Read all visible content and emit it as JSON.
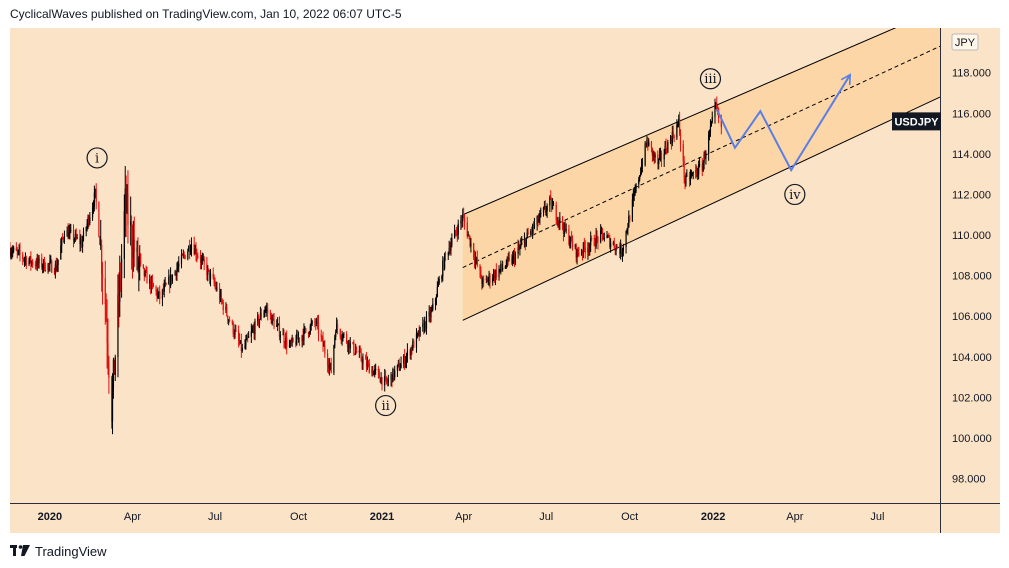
{
  "header": {
    "text": "CyclicalWaves published on TradingView.com, Jan 10, 2022 06:07 UTC-5"
  },
  "footer": {
    "brand": "TradingView",
    "logo_icon": "tradingview-logo-icon"
  },
  "chart_data": {
    "type": "candlestick",
    "symbol_label": "USDJPY",
    "currency_label": "JPY",
    "y_ticks": [
      98,
      100,
      102,
      104,
      106,
      108,
      110,
      112,
      114,
      116,
      118
    ],
    "y_tick_labels": [
      "98.000",
      "100.000",
      "102.000",
      "104.000",
      "106.000",
      "108.000",
      "110.000",
      "112.000",
      "114.000",
      "116.000",
      "118.000"
    ],
    "ylim": [
      96.8,
      120.2
    ],
    "x_ticks": [
      {
        "date": "2020-01-01",
        "label": "2020",
        "bold": true
      },
      {
        "date": "2020-04-01",
        "label": "Apr",
        "bold": false
      },
      {
        "date": "2020-07-01",
        "label": "Jul",
        "bold": false
      },
      {
        "date": "2020-10-01",
        "label": "Oct",
        "bold": false
      },
      {
        "date": "2021-01-01",
        "label": "2021",
        "bold": true
      },
      {
        "date": "2021-04-01",
        "label": "Apr",
        "bold": false
      },
      {
        "date": "2021-07-01",
        "label": "Jul",
        "bold": false
      },
      {
        "date": "2021-10-01",
        "label": "Oct",
        "bold": false
      },
      {
        "date": "2022-01-01",
        "label": "2022",
        "bold": true
      },
      {
        "date": "2022-04-01",
        "label": "Apr",
        "bold": false
      },
      {
        "date": "2022-07-01",
        "label": "Jul",
        "bold": false
      }
    ],
    "xlim": [
      "2019-11-18",
      "2022-09-08"
    ],
    "price_path": [
      {
        "date": "2019-11-18",
        "value": 109.3
      },
      {
        "date": "2019-12-10",
        "value": 108.7
      },
      {
        "date": "2020-01-08",
        "value": 108.4
      },
      {
        "date": "2020-01-17",
        "value": 110.2
      },
      {
        "date": "2020-02-05",
        "value": 109.6
      },
      {
        "date": "2020-02-20",
        "value": 112.0
      },
      {
        "date": "2020-03-01",
        "value": 107.5
      },
      {
        "date": "2020-03-09",
        "value": 101.5
      },
      {
        "date": "2020-03-24",
        "value": 111.5
      },
      {
        "date": "2020-04-06",
        "value": 108.6
      },
      {
        "date": "2020-05-01",
        "value": 106.9
      },
      {
        "date": "2020-06-05",
        "value": 109.6
      },
      {
        "date": "2020-07-01",
        "value": 107.5
      },
      {
        "date": "2020-07-31",
        "value": 104.3
      },
      {
        "date": "2020-08-25",
        "value": 106.4
      },
      {
        "date": "2020-09-21",
        "value": 104.5
      },
      {
        "date": "2020-10-20",
        "value": 105.7
      },
      {
        "date": "2020-11-06",
        "value": 103.3
      },
      {
        "date": "2020-11-11",
        "value": 105.5
      },
      {
        "date": "2020-12-15",
        "value": 103.6
      },
      {
        "date": "2021-01-06",
        "value": 102.7
      },
      {
        "date": "2021-01-25",
        "value": 103.8
      },
      {
        "date": "2021-02-25",
        "value": 106.2
      },
      {
        "date": "2021-03-12",
        "value": 109.0
      },
      {
        "date": "2021-03-31",
        "value": 110.9
      },
      {
        "date": "2021-04-22",
        "value": 107.6
      },
      {
        "date": "2021-05-25",
        "value": 108.8
      },
      {
        "date": "2021-07-05",
        "value": 111.6
      },
      {
        "date": "2021-08-04",
        "value": 109.1
      },
      {
        "date": "2021-09-01",
        "value": 110.0
      },
      {
        "date": "2021-09-22",
        "value": 109.2
      },
      {
        "date": "2021-10-20",
        "value": 114.6
      },
      {
        "date": "2021-11-01",
        "value": 113.5
      },
      {
        "date": "2021-11-24",
        "value": 115.5
      },
      {
        "date": "2021-12-01",
        "value": 112.6
      },
      {
        "date": "2021-12-20",
        "value": 113.4
      },
      {
        "date": "2022-01-04",
        "value": 116.3
      },
      {
        "date": "2022-01-10",
        "value": 115.2
      }
    ],
    "channel": {
      "upper": [
        {
          "date": "2021-03-31",
          "value": 111.0
        },
        {
          "date": "2022-08-05",
          "value": 120.5
        }
      ],
      "lower": [
        {
          "date": "2021-03-31",
          "value": 105.8
        },
        {
          "date": "2022-09-08",
          "value": 116.8
        }
      ],
      "midline": [
        {
          "date": "2021-03-31",
          "value": 108.4
        },
        {
          "date": "2022-09-08",
          "value": 119.3
        }
      ]
    },
    "projection": [
      {
        "date": "2022-01-05",
        "value": 116.2
      },
      {
        "date": "2022-01-25",
        "value": 114.3
      },
      {
        "date": "2022-02-22",
        "value": 116.1
      },
      {
        "date": "2022-03-28",
        "value": 113.2
      },
      {
        "date": "2022-06-01",
        "value": 117.9
      }
    ],
    "projection_color": "#5b7ee5",
    "wave_labels": [
      {
        "text": "i",
        "date": "2020-02-22",
        "value": 113.8
      },
      {
        "text": "ii",
        "date": "2021-01-05",
        "value": 101.6
      },
      {
        "text": "iii",
        "date": "2021-12-29",
        "value": 117.7
      },
      {
        "text": "iv",
        "date": "2022-04-01",
        "value": 112.0
      }
    ],
    "last_price_tag": {
      "label": "USDJPY",
      "value": 115.6
    },
    "colors": {
      "background": "#fbe3c7",
      "channel_fill": "#fcd6a6",
      "up_candle": "#000000",
      "down_candle": "#e0110f"
    }
  }
}
